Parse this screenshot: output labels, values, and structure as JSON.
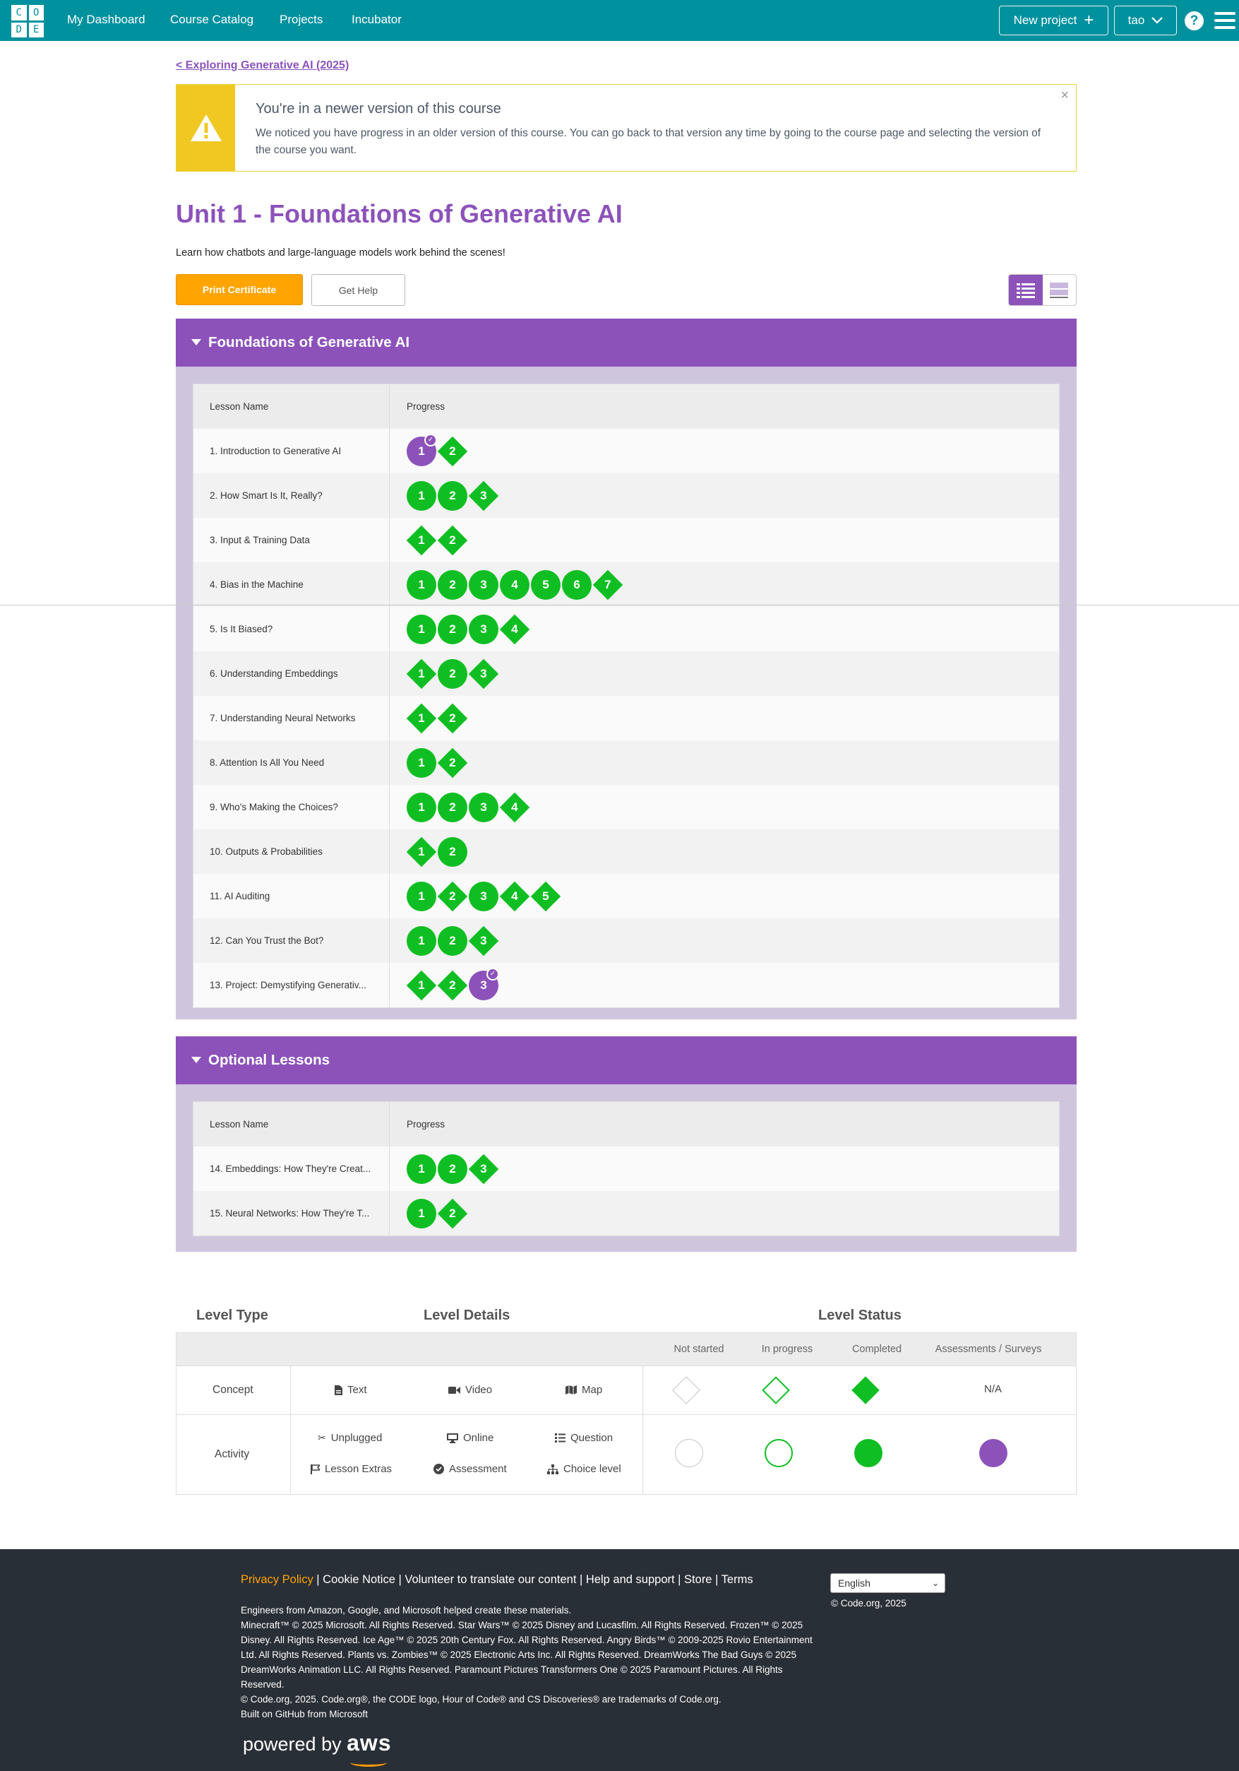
{
  "header": {
    "logo_letters": [
      "C",
      "O",
      "D",
      "E"
    ],
    "nav": [
      "My Dashboard",
      "Course Catalog",
      "Projects",
      "Incubator"
    ],
    "new_project": "New project",
    "user": "tao"
  },
  "breadcrumb": "< Exploring Generative AI (2025)",
  "notice": {
    "title": "You're in a newer version of this course",
    "text": "We noticed you have progress in an older version of this course. You can go back to that version any time by going to the course page and selecting the version of the course you want.",
    "close": "×"
  },
  "unit": {
    "title": "Unit 1 - Foundations of Generative AI",
    "description": "Learn how chatbots and large-language models work behind the scenes!",
    "print_certificate": "Print Certificate",
    "get_help": "Get Help"
  },
  "table_headers": {
    "lesson_name": "Lesson Name",
    "progress": "Progress"
  },
  "groups": [
    {
      "title": "Foundations of Generative AI",
      "lessons": [
        {
          "name": "1. Introduction to Generative AI",
          "levels": [
            [
              "c",
              "1",
              "purple-check"
            ],
            [
              "d",
              "2"
            ]
          ]
        },
        {
          "name": "2. How Smart Is It, Really?",
          "levels": [
            [
              "c",
              "1"
            ],
            [
              "c",
              "2"
            ],
            [
              "d",
              "3"
            ]
          ]
        },
        {
          "name": "3. Input & Training Data",
          "levels": [
            [
              "d",
              "1"
            ],
            [
              "d",
              "2"
            ]
          ]
        },
        {
          "name": "4. Bias in the Machine",
          "levels": [
            [
              "c",
              "1"
            ],
            [
              "c",
              "2"
            ],
            [
              "c",
              "3"
            ],
            [
              "c",
              "4"
            ],
            [
              "c",
              "5"
            ],
            [
              "c",
              "6"
            ],
            [
              "d",
              "7"
            ]
          ]
        },
        {
          "name": "5. Is It Biased?",
          "levels": [
            [
              "c",
              "1"
            ],
            [
              "c",
              "2"
            ],
            [
              "c",
              "3"
            ],
            [
              "d",
              "4"
            ]
          ]
        },
        {
          "name": "6. Understanding Embeddings",
          "levels": [
            [
              "d",
              "1"
            ],
            [
              "c",
              "2"
            ],
            [
              "d",
              "3"
            ]
          ]
        },
        {
          "name": "7. Understanding Neural Networks",
          "levels": [
            [
              "d",
              "1"
            ],
            [
              "d",
              "2"
            ]
          ]
        },
        {
          "name": "8. Attention Is All You Need",
          "levels": [
            [
              "c",
              "1"
            ],
            [
              "d",
              "2"
            ]
          ]
        },
        {
          "name": "9. Who's Making the Choices?",
          "levels": [
            [
              "c",
              "1"
            ],
            [
              "c",
              "2"
            ],
            [
              "c",
              "3"
            ],
            [
              "d",
              "4"
            ]
          ]
        },
        {
          "name": "10. Outputs & Probabilities",
          "levels": [
            [
              "d",
              "1"
            ],
            [
              "c",
              "2"
            ]
          ]
        },
        {
          "name": "11. AI Auditing",
          "levels": [
            [
              "c",
              "1"
            ],
            [
              "d",
              "2"
            ],
            [
              "c",
              "3"
            ],
            [
              "d",
              "4"
            ],
            [
              "d",
              "5"
            ]
          ]
        },
        {
          "name": "12. Can You Trust the Bot?",
          "levels": [
            [
              "c",
              "1"
            ],
            [
              "c",
              "2"
            ],
            [
              "d",
              "3"
            ]
          ]
        },
        {
          "name": "13. Project: Demystifying Generativ...",
          "levels": [
            [
              "d",
              "1"
            ],
            [
              "d",
              "2"
            ],
            [
              "c",
              "3",
              "purple-check"
            ]
          ]
        }
      ]
    },
    {
      "title": "Optional Lessons",
      "lessons": [
        {
          "name": "14. Embeddings: How They're Creat...",
          "levels": [
            [
              "c",
              "1"
            ],
            [
              "c",
              "2"
            ],
            [
              "d",
              "3"
            ]
          ]
        },
        {
          "name": "15. Neural Networks: How They're T...",
          "levels": [
            [
              "c",
              "1"
            ],
            [
              "d",
              "2"
            ]
          ]
        }
      ]
    }
  ],
  "key": {
    "level_type": "Level Type",
    "level_details": "Level Details",
    "level_status": "Level Status",
    "status_cols": [
      "Not started",
      "In progress",
      "Completed",
      "Assessments / Surveys"
    ],
    "concept": {
      "label": "Concept",
      "details": [
        "Text",
        "Video",
        "Map"
      ],
      "na": "N/A"
    },
    "activity": {
      "label": "Activity",
      "details": [
        "Unplugged",
        "Online",
        "Question",
        "Lesson Extras",
        "Assessment",
        "Choice level"
      ]
    }
  },
  "footer": {
    "links": [
      "Privacy Policy",
      "Cookie Notice",
      "Volunteer to translate our content",
      "Help and support",
      "Store",
      "Terms"
    ],
    "lines": [
      "Engineers from Amazon, Google, and Microsoft helped create these materials.",
      "Minecraft™ © 2025 Microsoft. All Rights Reserved. Star Wars™ © 2025 Disney and Lucasfilm. All Rights Reserved. Frozen™ © 2025 Disney. All Rights Reserved. Ice Age™ © 2025 20th Century Fox. All Rights Reserved. Angry Birds™ © 2009-2025 Rovio Entertainment Ltd. All Rights Reserved. Plants vs. Zombies™ © 2025 Electronic Arts Inc. All Rights Reserved. DreamWorks The Bad Guys © 2025 DreamWorks Animation LLC. All Rights Reserved. Paramount Pictures Transformers One © 2025 Paramount Pictures. All Rights Reserved.",
      "© Code.org, 2025. Code.org®, the CODE logo, Hour of Code® and CS Discoveries® are trademarks of Code.org.",
      "Built on GitHub from Microsoft"
    ],
    "language": "English",
    "copyright": "© Code.org, 2025",
    "powered_by": "powered by",
    "aws": "aws"
  },
  "colors": {
    "brand_teal": "#00919e",
    "purple": "#8c52ba",
    "green": "#0fbe22",
    "orange": "#ffa400"
  }
}
